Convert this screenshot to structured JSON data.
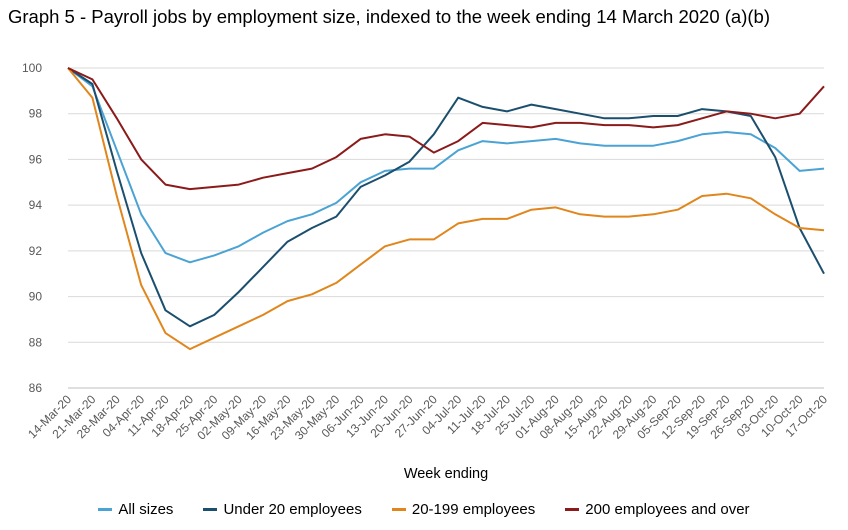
{
  "chart_data": {
    "type": "line",
    "title": "Graph 5 - Payroll jobs by employment size, indexed to the week ending 14 March 2020 (a)(b)",
    "xlabel": "Week ending",
    "ylabel": "",
    "ylim": [
      86,
      100
    ],
    "yticks": [
      86,
      88,
      90,
      92,
      94,
      96,
      98,
      100
    ],
    "grid": "horizontal",
    "legend_position": "bottom",
    "categories": [
      "14-Mar-20",
      "21-Mar-20",
      "28-Mar-20",
      "04-Apr-20",
      "11-Apr-20",
      "18-Apr-20",
      "25-Apr-20",
      "02-May-20",
      "09-May-20",
      "16-May-20",
      "23-May-20",
      "30-May-20",
      "06-Jun-20",
      "13-Jun-20",
      "20-Jun-20",
      "27-Jun-20",
      "04-Jul-20",
      "11-Jul-20",
      "18-Jul-20",
      "25-Jul-20",
      "01-Aug-20",
      "08-Aug-20",
      "15-Aug-20",
      "22-Aug-20",
      "29-Aug-20",
      "05-Sep-20",
      "12-Sep-20",
      "19-Sep-20",
      "26-Sep-20",
      "03-Oct-20",
      "10-Oct-20",
      "17-Oct-20"
    ],
    "series": [
      {
        "name": "All sizes",
        "color": "#4aa3d4",
        "values": [
          100,
          99.2,
          96.4,
          93.6,
          91.9,
          91.5,
          91.8,
          92.2,
          92.8,
          93.3,
          93.6,
          94.1,
          95.0,
          95.5,
          95.6,
          95.6,
          96.4,
          96.8,
          96.7,
          96.8,
          96.9,
          96.7,
          96.6,
          96.6,
          96.6,
          96.8,
          97.1,
          97.2,
          97.1,
          96.5,
          95.5,
          95.6
        ]
      },
      {
        "name": "Under 20 employees",
        "color": "#1b4f6e",
        "values": [
          100,
          99.3,
          95.5,
          91.9,
          89.4,
          88.7,
          89.2,
          90.2,
          91.3,
          92.4,
          93.0,
          93.5,
          94.8,
          95.3,
          95.9,
          97.1,
          98.7,
          98.3,
          98.1,
          98.4,
          98.2,
          98.0,
          97.8,
          97.8,
          97.9,
          97.9,
          98.2,
          98.1,
          97.9,
          96.1,
          93.0,
          91.0
        ]
      },
      {
        "name": "20-199 employees",
        "color": "#e0861c",
        "values": [
          100,
          98.7,
          94.4,
          90.5,
          88.4,
          87.7,
          88.2,
          88.7,
          89.2,
          89.8,
          90.1,
          90.6,
          91.4,
          92.2,
          92.5,
          92.5,
          93.2,
          93.4,
          93.4,
          93.8,
          93.9,
          93.6,
          93.5,
          93.5,
          93.6,
          93.8,
          94.4,
          94.5,
          94.3,
          93.6,
          93.0,
          92.9
        ]
      },
      {
        "name": "200 employees and over",
        "color": "#8b1a1a",
        "values": [
          100,
          99.5,
          97.8,
          96.0,
          94.9,
          94.7,
          94.8,
          94.9,
          95.2,
          95.4,
          95.6,
          96.1,
          96.9,
          97.1,
          97.0,
          96.3,
          96.8,
          97.6,
          97.5,
          97.4,
          97.6,
          97.6,
          97.5,
          97.5,
          97.4,
          97.5,
          97.8,
          98.1,
          98.0,
          97.8,
          98.0,
          99.2
        ]
      }
    ]
  }
}
